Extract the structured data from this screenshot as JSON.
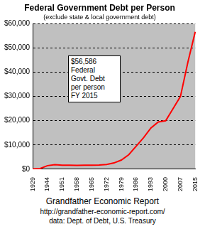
{
  "chart_data": {
    "type": "line",
    "title": "Federal Government Debt per Person",
    "subtitle": "(exclude state & local government debt)",
    "categories": [
      "1929",
      null,
      "1944",
      null,
      "1951",
      null,
      "1958",
      null,
      "1965",
      null,
      "1972",
      null,
      "1979",
      null,
      "1986",
      null,
      "1993",
      null,
      "2000",
      null,
      "2007",
      null,
      "2015"
    ],
    "values": [
      150,
      300,
      1500,
      1900,
      1700,
      1700,
      1600,
      1650,
      1650,
      1750,
      2000,
      2600,
      3800,
      6000,
      9500,
      13000,
      17000,
      19500,
      20000,
      25000,
      30000,
      44000,
      56586
    ],
    "color": "#ff0000",
    "ylim": [
      0,
      60000
    ],
    "yticks": [
      {
        "value": 0,
        "label": "$0"
      },
      {
        "value": 10000,
        "label": "$10,000"
      },
      {
        "value": 20000,
        "label": "$20,000"
      },
      {
        "value": 30000,
        "label": "$30,000"
      },
      {
        "value": 40000,
        "label": "$40,000"
      },
      {
        "value": 50000,
        "label": "$50,000"
      },
      {
        "value": 60000,
        "label": "$60,000"
      }
    ],
    "grid": true,
    "annotation": [
      "$56,586",
      "Federal",
      "Govt. Debt",
      "per person",
      "FY 2015"
    ],
    "footer": [
      "Grandfather Economic Report",
      "http://grandfather-economic-report.com/",
      "data: Dept. of Debt, U.S. Treasury"
    ]
  }
}
